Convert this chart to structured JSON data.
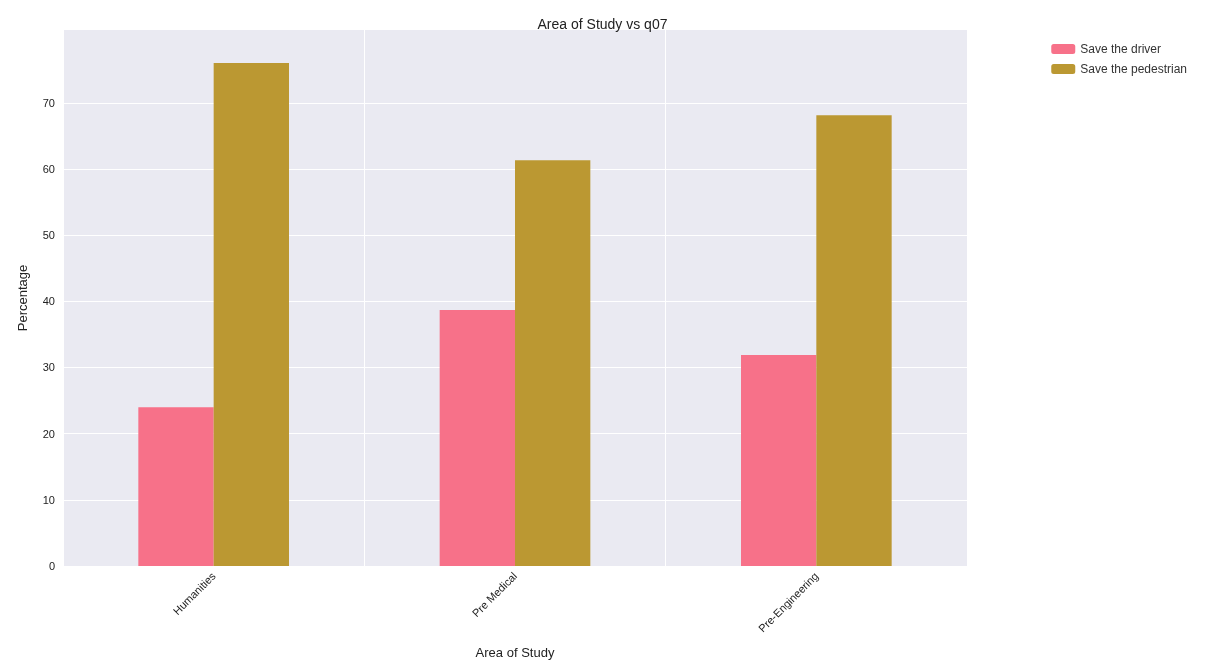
{
  "chart_data": {
    "type": "bar",
    "title": "Area of Study vs q07",
    "xlabel": "Area of Study",
    "ylabel": "Percentage",
    "categories": [
      "Humanities",
      "Pre Medical",
      "Pre-Engineering"
    ],
    "series": [
      {
        "name": "Save the driver",
        "color": "#f77189",
        "values": [
          24.0,
          38.7,
          31.9
        ]
      },
      {
        "name": "Save the pedestrian",
        "color": "#bb9832",
        "values": [
          76.0,
          61.3,
          68.1
        ]
      }
    ],
    "ylim": [
      0,
      81
    ],
    "yticks": [
      0,
      10,
      20,
      30,
      40,
      50,
      60,
      70
    ],
    "grid": true,
    "legend": "top right"
  }
}
